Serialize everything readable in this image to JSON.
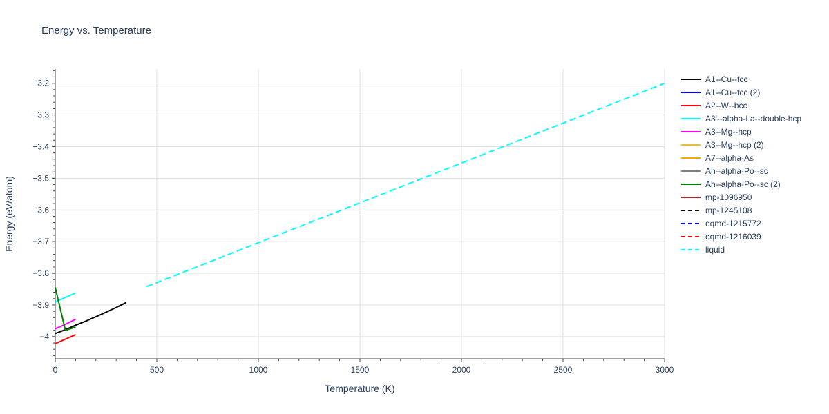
{
  "chart_data": {
    "type": "line",
    "title": "Energy vs. Temperature",
    "xlabel": "Temperature (K)",
    "ylabel": "Energy (eV/atom)",
    "xlim": [
      0,
      3000
    ],
    "ylim": [
      -4.07,
      -3.155
    ],
    "xticks": [
      0,
      500,
      1000,
      1500,
      2000,
      2500,
      3000
    ],
    "xtick_labels": [
      "0",
      "500",
      "1000",
      "1500",
      "2000",
      "2500",
      "3000"
    ],
    "yticks": [
      -4,
      -3.9,
      -3.8,
      -3.7,
      -3.6,
      -3.5,
      -3.4,
      -3.3,
      -3.2
    ],
    "ytick_labels": [
      "−4",
      "−3.9",
      "−3.8",
      "−3.7",
      "−3.6",
      "−3.5",
      "−3.4",
      "−3.3",
      "−3.2"
    ],
    "grid": true,
    "legend_position": "right",
    "series": [
      {
        "name": "A1--Cu--fcc",
        "color": "#000000",
        "dash": "solid",
        "x": [
          0,
          50,
          100,
          150,
          200,
          250,
          300,
          350
        ],
        "y": [
          -3.99,
          -3.978,
          -3.964,
          -3.951,
          -3.937,
          -3.923,
          -3.908,
          -3.892
        ]
      },
      {
        "name": "A1--Cu--fcc (2)",
        "color": "#0000ff",
        "dash": "solid",
        "x": [],
        "y": []
      },
      {
        "name": "A2--W--bcc",
        "color": "#ff0000",
        "dash": "solid",
        "x": [
          0,
          50,
          100
        ],
        "y": [
          -4.022,
          -4.008,
          -3.994
        ]
      },
      {
        "name": "A3'--alpha-La--double-hcp",
        "color": "#00ffff",
        "dash": "solid",
        "x": [
          0,
          50,
          100
        ],
        "y": [
          -3.89,
          -3.876,
          -3.862
        ]
      },
      {
        "name": "A3--Mg--hcp",
        "color": "#ff00ff",
        "dash": "solid",
        "x": [
          0,
          50,
          100
        ],
        "y": [
          -3.975,
          -3.961,
          -3.945
        ]
      },
      {
        "name": "A3--Mg--hcp (2)",
        "color": "#ffbf00",
        "dash": "solid",
        "x": [],
        "y": []
      },
      {
        "name": "A7--alpha-As",
        "color": "#ffa500",
        "dash": "solid",
        "x": [],
        "y": []
      },
      {
        "name": "Ah--alpha-Po--sc",
        "color": "#808080",
        "dash": "solid",
        "x": [],
        "y": []
      },
      {
        "name": "Ah--alpha-Po--sc (2)",
        "color": "#008000",
        "dash": "solid",
        "x": [
          0,
          50,
          100
        ],
        "y": [
          -3.845,
          -3.98,
          -3.97
        ]
      },
      {
        "name": "mp-1096950",
        "color": "#a52a2a",
        "dash": "solid",
        "x": [],
        "y": []
      },
      {
        "name": "mp-1245108",
        "color": "#000000",
        "dash": "dash",
        "x": [],
        "y": []
      },
      {
        "name": "oqmd-1215772",
        "color": "#0000ff",
        "dash": "dash",
        "x": [],
        "y": []
      },
      {
        "name": "oqmd-1216039",
        "color": "#ff0000",
        "dash": "dash",
        "x": [],
        "y": []
      },
      {
        "name": "liquid",
        "color": "#00ffff",
        "dash": "dash",
        "x": [
          450,
          3000
        ],
        "y": [
          -3.842,
          -3.2
        ]
      }
    ]
  }
}
